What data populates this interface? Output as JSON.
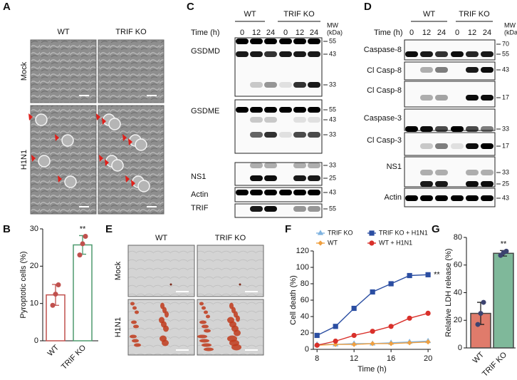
{
  "panels": {
    "A": {
      "label": "A",
      "columns": [
        "WT",
        "TRIF KO"
      ],
      "rows": [
        "Mock",
        "H1N1"
      ]
    },
    "C": {
      "label": "C",
      "groups": [
        "WT",
        "TRIF KO"
      ],
      "time_label": "Time (h)",
      "times": [
        0,
        12,
        24,
        0,
        12,
        24
      ],
      "mw_header": [
        "MW",
        "(kDa)"
      ],
      "blots": [
        {
          "name": "GSDMD",
          "mw": [
            55,
            43,
            33
          ]
        },
        {
          "name": "GSDME",
          "mw": [
            55,
            43,
            33
          ]
        },
        {
          "name": "NS1",
          "mw": [
            33,
            25
          ]
        },
        {
          "name": "Actin",
          "mw": [
            43
          ]
        },
        {
          "name": "TRIF",
          "mw": [
            55
          ]
        }
      ]
    },
    "D": {
      "label": "D",
      "groups": [
        "WT",
        "TRIF KO"
      ],
      "time_label": "Time (h)",
      "times": [
        0,
        12,
        24,
        0,
        12,
        24
      ],
      "mw_header": [
        "MW",
        "(kDa)"
      ],
      "blots": [
        {
          "name": "Caspase-8",
          "mw": [
            70,
            55
          ]
        },
        {
          "name": "Cl Casp-8",
          "mw": [
            43
          ]
        },
        {
          "name": "Cl Casp-8",
          "mw": [
            17
          ]
        },
        {
          "name": "Caspase-3",
          "mw": [
            33
          ]
        },
        {
          "name": "Cl Casp-3",
          "mw": [
            17
          ]
        },
        {
          "name": "NS1",
          "mw": [
            33,
            25
          ]
        },
        {
          "name": "Actin",
          "mw": [
            43
          ]
        }
      ]
    },
    "E": {
      "label": "E",
      "columns": [
        "WT",
        "TRIF KO"
      ],
      "rows": [
        "Mock",
        "H1N1"
      ]
    }
  },
  "chart_data": [
    {
      "panel": "B",
      "type": "bar",
      "categories": [
        "WT",
        "TRIF KO"
      ],
      "values": [
        12.3,
        25.7
      ],
      "errors": [
        2.8,
        2.5
      ],
      "points": [
        [
          9.5,
          12.5,
          15
        ],
        [
          23,
          26,
          28
        ]
      ],
      "colors": [
        "#c0504d",
        "#4e9a6e"
      ],
      "filled": false,
      "point_color": "#c0504d",
      "ylabel": "Pyroptotic cells (%)",
      "ylim": [
        0,
        30
      ],
      "yticks": [
        0,
        10,
        20,
        30
      ],
      "significance": [
        null,
        "**"
      ]
    },
    {
      "panel": "F",
      "type": "line",
      "x": [
        8,
        10,
        12,
        14,
        16,
        18,
        20
      ],
      "xlim": [
        7.6,
        20.3
      ],
      "xticks": [
        8,
        12,
        16,
        20
      ],
      "ylim": [
        0,
        120
      ],
      "yticks": [
        0,
        20,
        40,
        60,
        80,
        100,
        120
      ],
      "xlabel": "Time (h)",
      "ylabel": "Cell death (%)",
      "series": [
        {
          "name": "TRIF KO",
          "color": "#7fb3e0",
          "marker": "triangle",
          "values": [
            6,
            6,
            7,
            7,
            8,
            9,
            10
          ]
        },
        {
          "name": "TRIF KO + H1N1",
          "color": "#2b4ea2",
          "marker": "square",
          "values": [
            17,
            28,
            50,
            70,
            80,
            90,
            91
          ]
        },
        {
          "name": "WT",
          "color": "#f0a040",
          "marker": "diamond",
          "values": [
            5,
            6,
            6,
            7,
            7,
            8,
            9
          ]
        },
        {
          "name": "WT + H1N1",
          "color": "#d9302a",
          "marker": "circle",
          "values": [
            5,
            10,
            17,
            22,
            28,
            38,
            44
          ]
        }
      ],
      "annotation": "**"
    },
    {
      "panel": "G",
      "type": "bar",
      "categories": [
        "WT",
        "TRIF KO"
      ],
      "values": [
        25,
        68.5
      ],
      "errors": [
        8,
        2
      ],
      "points": [
        [
          17,
          25,
          33
        ],
        [
          67,
          69,
          70
        ]
      ],
      "colors": [
        "#e07b6b",
        "#7fb89a"
      ],
      "filled": true,
      "point_color": "#3c4370",
      "ylabel": "Relative LDH release (%)",
      "ylim": [
        0,
        80
      ],
      "yticks": [
        0,
        20,
        40,
        60,
        80
      ],
      "significance": [
        null,
        "**"
      ]
    }
  ]
}
